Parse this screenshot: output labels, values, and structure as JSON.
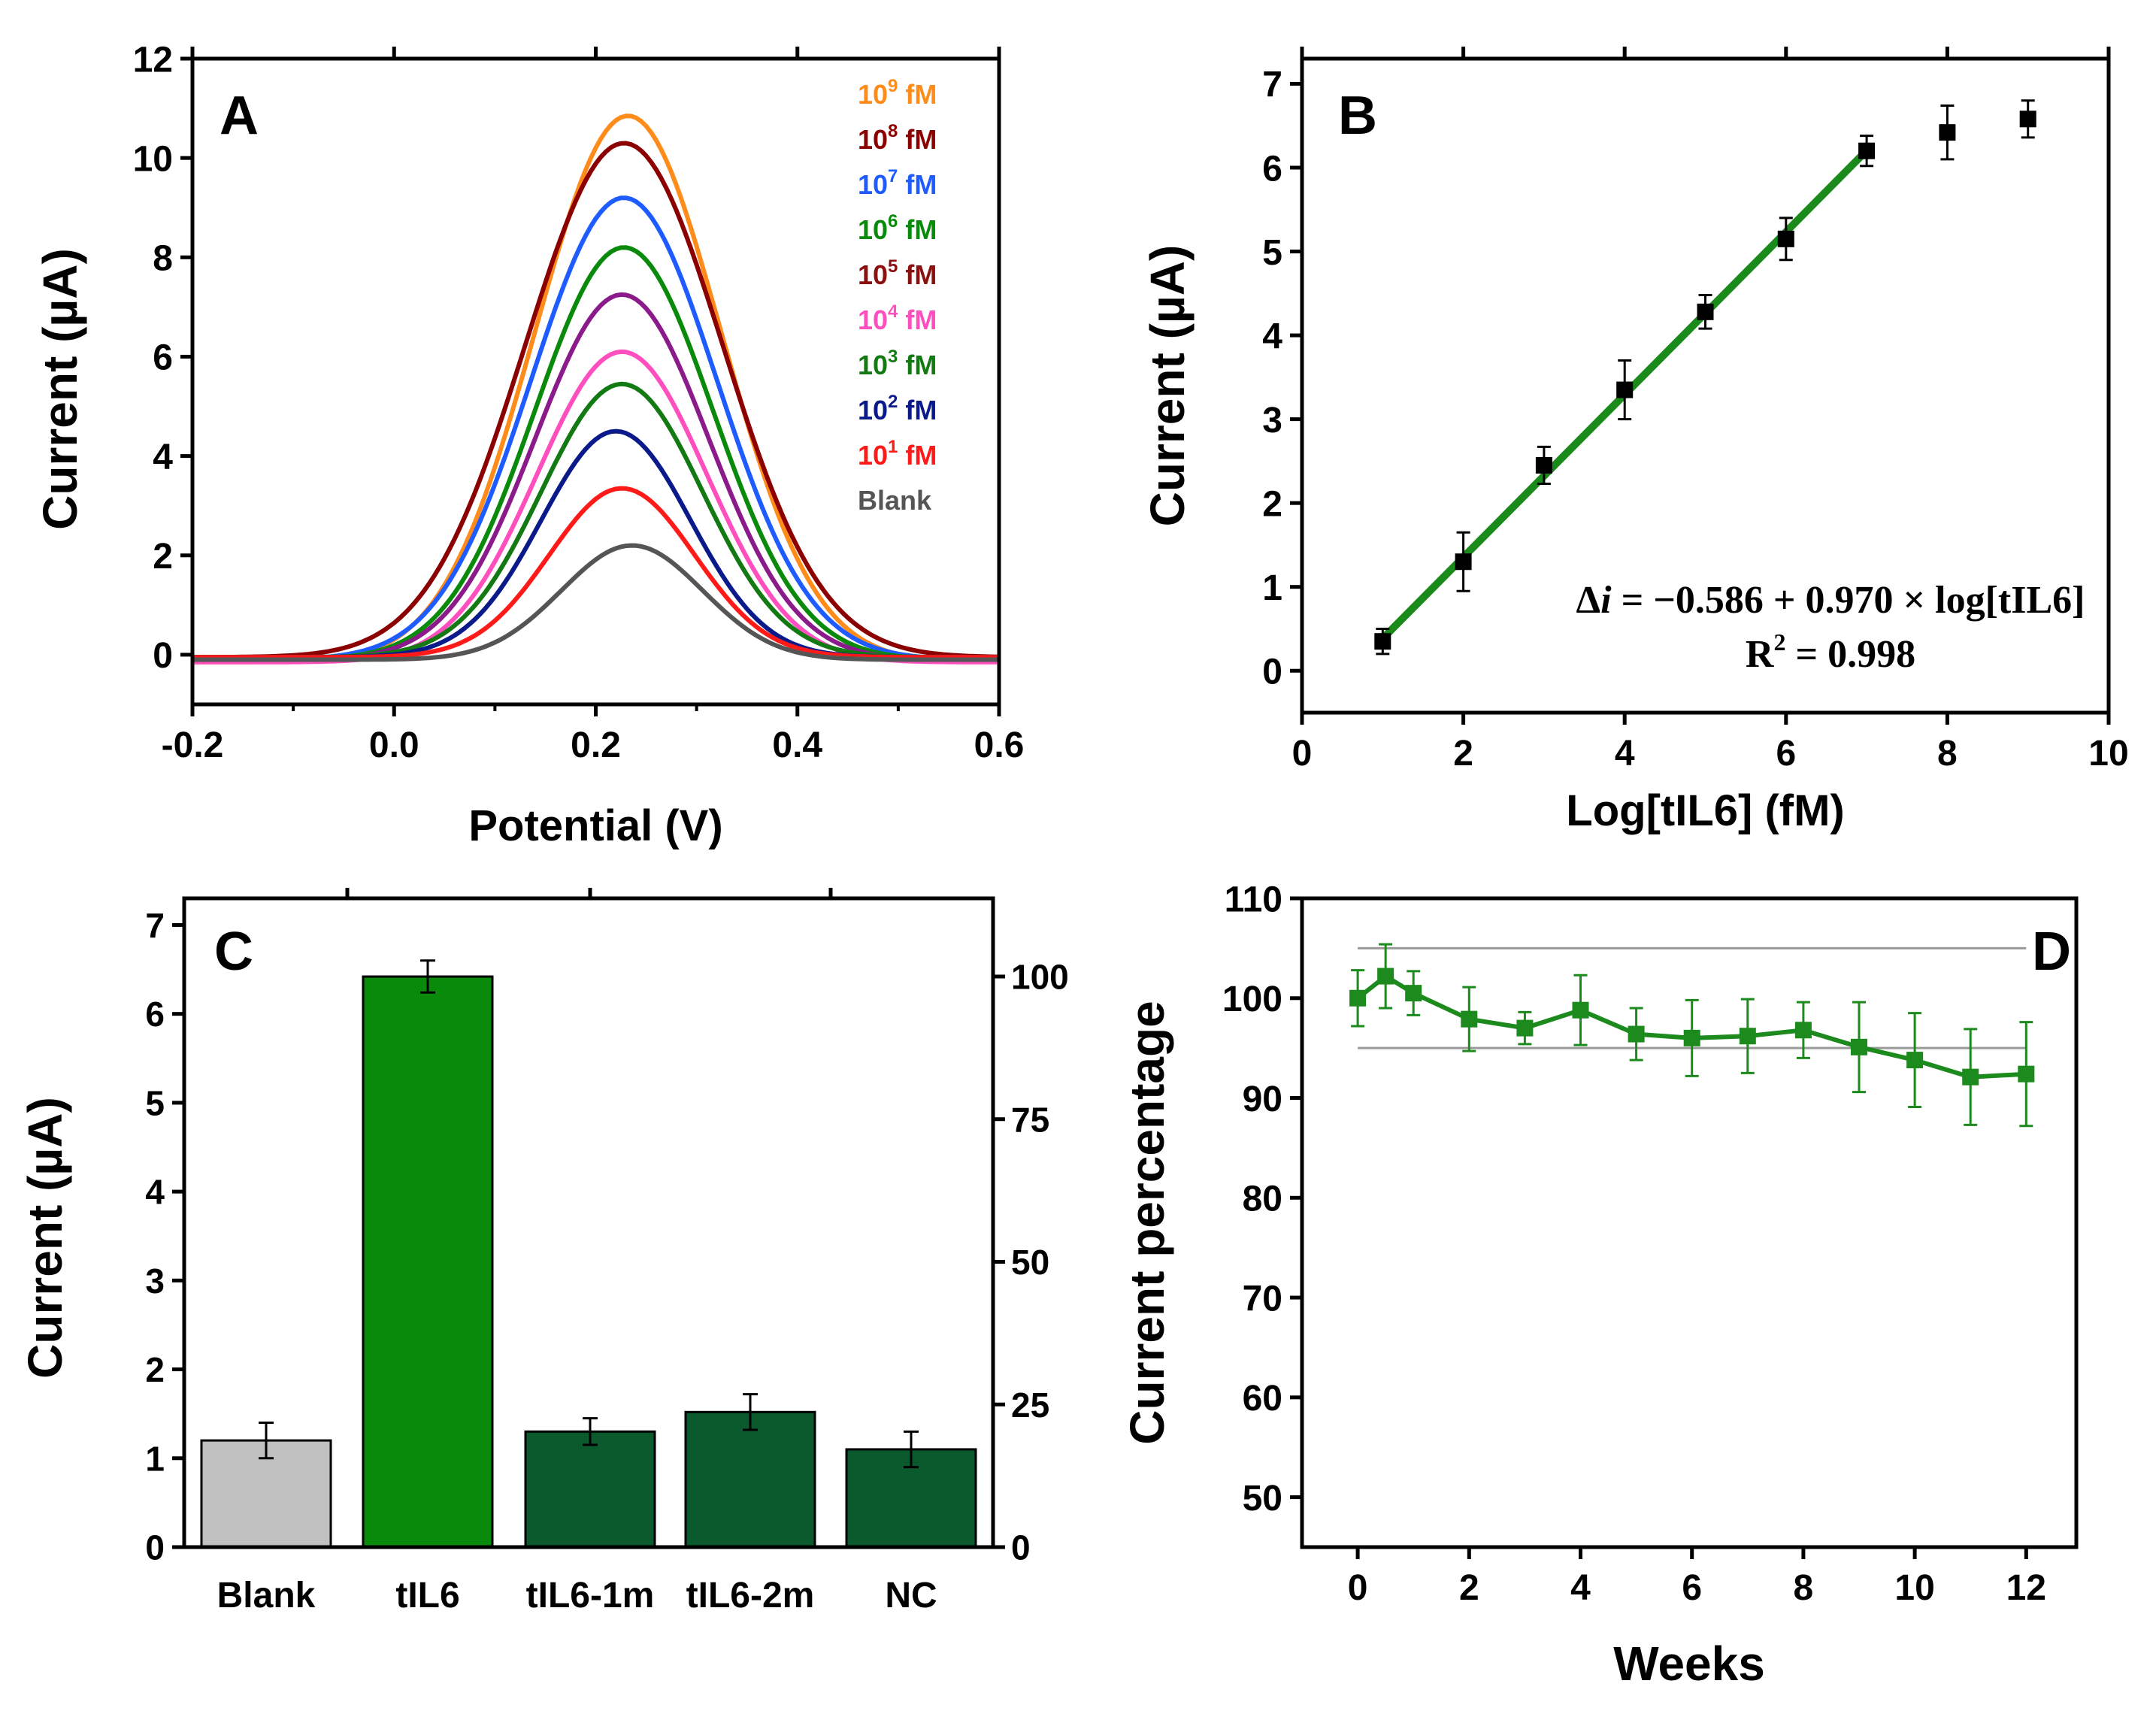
{
  "figure": {
    "colors": {
      "axis": "#000000",
      "fit_line": "#1a8a1a",
      "marker": "#000000",
      "bar_blank": "#c0c0c0",
      "bar_tIL6": "#0a8a0a",
      "bar_dark": "#0b5a2e",
      "stability": "#1c8a1c",
      "ref_line": "#9a9a9a"
    }
  },
  "chart_data": [
    {
      "panel": "A",
      "type": "line",
      "panel_label": "A",
      "xlabel": "Potential (V)",
      "ylabel": "Current (µA)",
      "xlim": [
        -0.2,
        0.6
      ],
      "ylim": [
        -1,
        12
      ],
      "xticks": [
        -0.2,
        0.0,
        0.2,
        0.4,
        0.6
      ],
      "xtick_labels": [
        "-0.2",
        "0.0",
        "0.2",
        "0.4",
        "0.6"
      ],
      "yticks": [
        0,
        2,
        4,
        6,
        8,
        10,
        12
      ],
      "ytick_labels": [
        "0",
        "2",
        "4",
        "6",
        "8",
        "10",
        "12"
      ],
      "legend": [
        {
          "base": "10",
          "exp": "9",
          "unit": " fM",
          "color": "#ff8c1a"
        },
        {
          "base": "10",
          "exp": "8",
          "unit": " fM",
          "color": "#8b0000"
        },
        {
          "base": "10",
          "exp": "7",
          "unit": " fM",
          "color": "#1f5cff"
        },
        {
          "base": "10",
          "exp": "6",
          "unit": " fM",
          "color": "#0a8a0a"
        },
        {
          "base": "10",
          "exp": "5",
          "unit": " fM",
          "color": "#8b1010"
        },
        {
          "base": "10",
          "exp": "4",
          "unit": " fM",
          "color": "#ff4fbf"
        },
        {
          "base": "10",
          "exp": "3",
          "unit": " fM",
          "color": "#137a13"
        },
        {
          "base": "10",
          "exp": "2",
          "unit": " fM",
          "color": "#0a1a8a"
        },
        {
          "base": "10",
          "exp": "1",
          "unit": " fM",
          "color": "#ff1a1a"
        },
        {
          "base": "Blank",
          "exp": "",
          "unit": "",
          "color": "#555555"
        }
      ],
      "series": [
        {
          "name": "10^9 fM",
          "peak": 10.85,
          "center": 0.232,
          "width": 0.092,
          "offset": -0.15,
          "color": "#ff8c1a"
        },
        {
          "name": "10^8 fM",
          "peak": 10.3,
          "center": 0.228,
          "width": 0.098,
          "offset": -0.05,
          "color": "#8b0000"
        },
        {
          "name": "10^7 fM",
          "peak": 9.2,
          "center": 0.228,
          "width": 0.092,
          "offset": -0.1,
          "color": "#1f5cff"
        },
        {
          "name": "10^6 fM",
          "peak": 8.2,
          "center": 0.228,
          "width": 0.088,
          "offset": -0.1,
          "color": "#0a8a0a"
        },
        {
          "name": "10^5 fM",
          "peak": 7.25,
          "center": 0.226,
          "width": 0.086,
          "offset": -0.1,
          "color": "#8b1b8b"
        },
        {
          "name": "10^4 fM",
          "peak": 6.1,
          "center": 0.226,
          "width": 0.084,
          "offset": -0.15,
          "color": "#ff4fbf"
        },
        {
          "name": "10^3 fM",
          "peak": 5.45,
          "center": 0.226,
          "width": 0.08,
          "offset": -0.05,
          "color": "#137a13"
        },
        {
          "name": "10^2 fM",
          "peak": 4.5,
          "center": 0.22,
          "width": 0.074,
          "offset": -0.05,
          "color": "#0a1a8a"
        },
        {
          "name": "10^1 fM",
          "peak": 3.35,
          "center": 0.226,
          "width": 0.072,
          "offset": -0.05,
          "color": "#ff1a1a"
        },
        {
          "name": "Blank",
          "peak": 2.2,
          "center": 0.236,
          "width": 0.07,
          "offset": -0.1,
          "color": "#555555"
        }
      ]
    },
    {
      "panel": "B",
      "type": "scatter",
      "panel_label": "B",
      "xlabel": "Log[tIL6] (fM)",
      "ylabel": "Current (µA)",
      "xlim": [
        0,
        10
      ],
      "ylim": [
        -0.5,
        7.3
      ],
      "xticks": [
        0,
        2,
        4,
        6,
        8,
        10
      ],
      "xtick_labels": [
        "0",
        "2",
        "4",
        "6",
        "8",
        "10"
      ],
      "yticks": [
        0,
        1,
        2,
        3,
        4,
        5,
        6,
        7
      ],
      "ytick_labels": [
        "0",
        "1",
        "2",
        "3",
        "4",
        "5",
        "6",
        "7"
      ],
      "x": [
        1,
        2,
        3,
        4,
        5,
        6,
        7,
        8,
        9
      ],
      "y": [
        0.35,
        1.3,
        2.45,
        3.35,
        4.28,
        5.15,
        6.2,
        6.42,
        6.58
      ],
      "yerr": [
        0.15,
        0.35,
        0.22,
        0.35,
        0.2,
        0.25,
        0.18,
        0.32,
        0.22
      ],
      "fit": {
        "intercept": -0.586,
        "slope": 0.97,
        "x_range": [
          1,
          7
        ]
      },
      "equation": {
        "delta": "Δ",
        "var": "i",
        "rest": " = −0.586 + 0.970 × log[tIL6]"
      },
      "r2": {
        "base": "R",
        "exp": "2",
        "rest": " = 0.998"
      }
    },
    {
      "panel": "C",
      "type": "bar",
      "panel_label": "C",
      "categories": [
        "Blank",
        "tIL6",
        "tIL6-1m",
        "tIL6-2m",
        "NC"
      ],
      "values": [
        1.2,
        6.42,
        1.3,
        1.52,
        1.1
      ],
      "errors": [
        0.2,
        0.18,
        0.15,
        0.2,
        0.2
      ],
      "ylabel": "Current (µA)",
      "y2label": "Current percentage",
      "ylim": [
        0,
        7.3
      ],
      "y2lim": [
        0,
        113.7
      ],
      "yticks": [
        0,
        1,
        2,
        3,
        4,
        5,
        6,
        7
      ],
      "ytick_labels": [
        "0",
        "1",
        "2",
        "3",
        "4",
        "5",
        "6",
        "7"
      ],
      "y2ticks": [
        0,
        25,
        50,
        75,
        100
      ],
      "y2tick_labels": [
        "0",
        "25",
        "50",
        "75",
        "100"
      ]
    },
    {
      "panel": "D",
      "type": "line",
      "panel_label": "D",
      "xlabel": "Weeks",
      "ylabel": "",
      "xlim": [
        -1,
        12.9
      ],
      "ylim": [
        45,
        110
      ],
      "xticks": [
        0,
        2,
        4,
        6,
        8,
        10,
        12
      ],
      "xtick_labels": [
        "0",
        "2",
        "4",
        "6",
        "8",
        "10",
        "12"
      ],
      "yticks": [
        50,
        60,
        70,
        80,
        90,
        100,
        110
      ],
      "ytick_labels": [
        "50",
        "60",
        "70",
        "80",
        "90",
        "100",
        "110"
      ],
      "x": [
        0,
        0.5,
        1,
        2,
        3,
        4,
        5,
        6,
        7,
        8,
        9,
        10,
        11,
        12
      ],
      "y": [
        100.0,
        102.2,
        100.5,
        97.9,
        97.0,
        98.8,
        96.4,
        96.0,
        96.2,
        96.8,
        95.1,
        93.8,
        92.1,
        92.4
      ],
      "yerr": [
        2.8,
        3.2,
        2.2,
        3.2,
        1.6,
        3.5,
        2.6,
        3.8,
        3.7,
        2.8,
        4.5,
        4.7,
        4.8,
        5.2
      ],
      "ref_lines": [
        105,
        95
      ]
    }
  ]
}
